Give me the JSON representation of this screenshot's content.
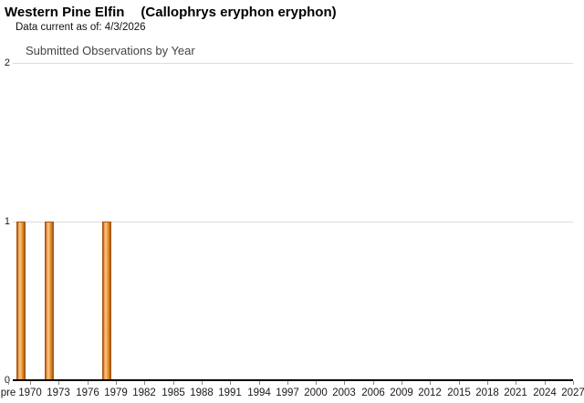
{
  "header": {
    "title_common": "Western Pine Elfin",
    "title_scientific": "(Callophrys eryphon eryphon)",
    "data_current_label": "Data current as of: 4/3/2026"
  },
  "chart_data": {
    "type": "bar",
    "title": "Submitted Observations by Year",
    "xlabel": "",
    "ylabel": "",
    "ylim": [
      0,
      2
    ],
    "grid": true,
    "legend_position": "none",
    "y_tick_labels": [
      "0",
      "1",
      "2"
    ],
    "x_tick_labels": [
      "pre",
      "1970",
      "1973",
      "1976",
      "1979",
      "1982",
      "1985",
      "1988",
      "1991",
      "1994",
      "1997",
      "2000",
      "2003",
      "2006",
      "2009",
      "2012",
      "2015",
      "2018",
      "2021",
      "2024",
      "2027"
    ],
    "bars": [
      {
        "label": "pre",
        "year": 1969,
        "value": 1
      },
      {
        "label": "1972",
        "year": 1972,
        "value": 1
      },
      {
        "label": "1978",
        "year": 1978,
        "value": 1
      }
    ],
    "colors": {
      "bar_edge": "#a3571b",
      "bar_fill_light": "#fcc688",
      "bar_fill_mid": "#efa045",
      "bar_fill_dark": "#9a5415",
      "axis": "#000000",
      "gridline": "#dcdcdc",
      "tick": "#8a8a8a",
      "axis_text": "#1a1a1a",
      "chart_title_text": "#444444"
    }
  }
}
